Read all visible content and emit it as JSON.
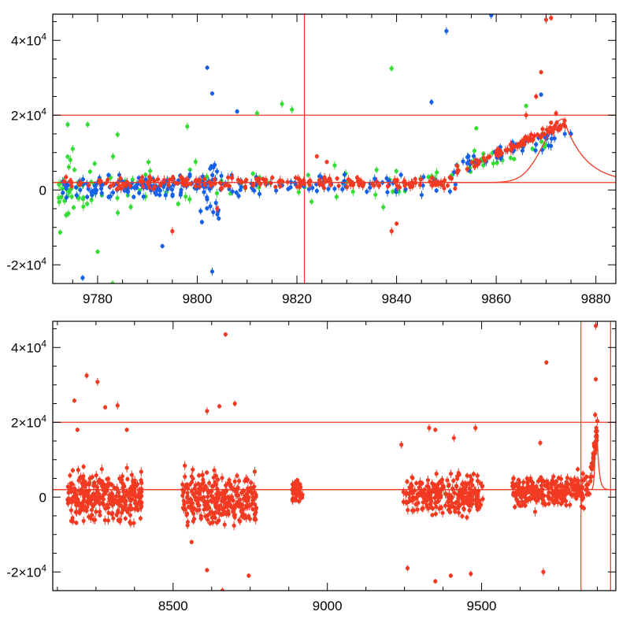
{
  "colors": {
    "red": "#f23a22",
    "blue": "#1560e8",
    "green": "#33dd33",
    "axis": "#000000"
  },
  "chart_data": [
    {
      "type": "scatter",
      "title": "",
      "xlabel": "",
      "ylabel": "",
      "xlim": [
        9771,
        9884
      ],
      "ylim": [
        -25000,
        47000
      ],
      "x_ticks": [
        9780,
        9800,
        9820,
        9840,
        9860,
        9880
      ],
      "x_tick_labels": [
        "9780",
        "9800",
        "9820",
        "9840",
        "9860",
        "9880"
      ],
      "y_ticks": [
        -20000,
        0,
        20000,
        40000
      ],
      "y_tick_labels": [
        {
          "mantissa": "-2",
          "exp": "4"
        },
        {
          "mantissa": "0",
          "exp": ""
        },
        {
          "mantissa": "2",
          "exp": "4"
        },
        {
          "mantissa": "4",
          "exp": "4"
        }
      ],
      "hlines": [
        20000,
        2000
      ],
      "vlines": [
        9821.5
      ],
      "model_curve": {
        "peak_x": 9873.5,
        "peak_y": 19000,
        "baseline": 2000,
        "rise_width": 4,
        "decay_width": 7
      },
      "series": [
        {
          "name": "green",
          "color": "green",
          "clusters": [
            {
              "x0": 9772,
              "x1": 9779,
              "n": 34,
              "y": 0,
              "spread": 7000,
              "seed": 11
            },
            {
              "x0": 9779,
              "x1": 9800,
              "n": 30,
              "y": 1000,
              "spread": 6000,
              "seed": 12
            },
            {
              "x0": 9800,
              "x1": 9840,
              "n": 26,
              "y": 1500,
              "spread": 5000,
              "seed": 13
            },
            {
              "x0": 9840,
              "x1": 9872,
              "n": 34,
              "y": 7000,
              "spread": 5000,
              "seed": 14
            }
          ],
          "points": [
            [
              9774,
              17500
            ],
            [
              9775,
              11000
            ],
            [
              9778,
              17500
            ],
            [
              9780,
              -16500
            ],
            [
              9783,
              -25000
            ],
            [
              9784,
              14800
            ],
            [
              9798,
              17000
            ],
            [
              9812,
              20500
            ],
            [
              9817,
              23000
            ],
            [
              9819,
              21500
            ],
            [
              9839,
              32500
            ],
            [
              9856,
              16500
            ],
            [
              9866,
              22500
            ]
          ]
        },
        {
          "name": "blue",
          "color": "blue",
          "clusters": [
            {
              "x0": 9773,
              "x1": 9800,
              "n": 120,
              "y": 1000,
              "spread": 2200,
              "seed": 21
            },
            {
              "x0": 9800,
              "x1": 9805,
              "n": 40,
              "y": 0,
              "spread": 6000,
              "seed": 22
            },
            {
              "x0": 9805,
              "x1": 9852,
              "n": 70,
              "y": 1500,
              "spread": 2500,
              "seed": 23
            },
            {
              "x0": 9852,
              "x1": 9875,
              "n": 55,
              "y": 10000,
              "spread": 3500,
              "seed": 24
            }
          ],
          "points": [
            [
              9777,
              -23500
            ],
            [
              9793,
              -15000
            ],
            [
              9802,
              32700
            ],
            [
              9803,
              25800
            ],
            [
              9803,
              -21800
            ],
            [
              9808,
              21000
            ],
            [
              9847,
              23500
            ],
            [
              9850,
              42500
            ],
            [
              9859,
              46700
            ],
            [
              9869,
              25500
            ]
          ]
        },
        {
          "name": "red",
          "color": "red",
          "clusters": [
            {
              "x0": 9773,
              "x1": 9852,
              "n": 210,
              "y": 2000,
              "spread": 1200,
              "seed": 31
            },
            {
              "x0": 9852,
              "x1": 9874,
              "n": 80,
              "y": 11000,
              "spread": 2000,
              "seed": 32
            }
          ],
          "points": [
            [
              9795,
              -11000
            ],
            [
              9804,
              -5000
            ],
            [
              9824,
              9000
            ],
            [
              9826,
              7500
            ],
            [
              9839,
              -11000
            ],
            [
              9840,
              -9000
            ],
            [
              9866,
              20000
            ],
            [
              9868,
              25000
            ],
            [
              9869,
              31500
            ],
            [
              9870,
              45500
            ],
            [
              9871,
              46000
            ],
            [
              9872,
              20500
            ],
            [
              9871,
              18000
            ]
          ]
        }
      ]
    },
    {
      "type": "scatter",
      "title": "",
      "xlabel": "",
      "ylabel": "",
      "xlim": [
        8110,
        9935
      ],
      "ylim": [
        -25000,
        47000
      ],
      "x_ticks": [
        8500,
        9000,
        9500
      ],
      "x_tick_labels": [
        "8500",
        "9000",
        "9500"
      ],
      "y_ticks": [
        -20000,
        0,
        20000,
        40000
      ],
      "y_tick_labels": [
        {
          "mantissa": "-2",
          "exp": "4"
        },
        {
          "mantissa": "0",
          "exp": ""
        },
        {
          "mantissa": "2",
          "exp": "4"
        },
        {
          "mantissa": "4",
          "exp": "4"
        }
      ],
      "hlines": [
        20000,
        2000
      ],
      "vlines": [
        9822,
        9918
      ],
      "model_curve": {
        "peak_x": 9873.5,
        "peak_y": 19000,
        "baseline": 2000,
        "rise_width": 5,
        "decay_width": 10
      },
      "series": [
        {
          "name": "red",
          "color": "red",
          "clusters": [
            {
              "x0": 8155,
              "x1": 8400,
              "n": 300,
              "y": 0,
              "spread": 5000,
              "seed": 41
            },
            {
              "x0": 8530,
              "x1": 8770,
              "n": 300,
              "y": -1000,
              "spread": 5500,
              "seed": 42
            },
            {
              "x0": 8885,
              "x1": 8920,
              "n": 40,
              "y": 1500,
              "spread": 2000,
              "seed": 43
            },
            {
              "x0": 9245,
              "x1": 9505,
              "n": 260,
              "y": 500,
              "spread": 4000,
              "seed": 44
            },
            {
              "x0": 9600,
              "x1": 9850,
              "n": 260,
              "y": 1500,
              "spread": 3500,
              "seed": 45
            },
            {
              "x0": 9852,
              "x1": 9875,
              "n": 40,
              "y": 11000,
              "spread": 4000,
              "seed": 46
            }
          ],
          "points": [
            [
              8180,
              25800
            ],
            [
              8220,
              32500
            ],
            [
              8255,
              30800
            ],
            [
              8280,
              24000
            ],
            [
              8320,
              24500
            ],
            [
              8350,
              18000
            ],
            [
              8190,
              18000
            ],
            [
              8610,
              23000
            ],
            [
              8650,
              24300
            ],
            [
              8670,
              43500
            ],
            [
              8700,
              25000
            ],
            [
              8610,
              -19500
            ],
            [
              8560,
              -12000
            ],
            [
              8660,
              -25000
            ],
            [
              8745,
              -21000
            ],
            [
              9330,
              18500
            ],
            [
              9260,
              -19000
            ],
            [
              9350,
              -22500
            ],
            [
              9400,
              -21000
            ],
            [
              9410,
              15800
            ],
            [
              9465,
              -20500
            ],
            [
              9710,
              36000
            ],
            [
              9700,
              -20000
            ],
            [
              9690,
              14500
            ],
            [
              9870,
              45800
            ],
            [
              9870,
              31500
            ],
            [
              9868,
              22000
            ],
            [
              9240,
              14000
            ],
            [
              9350,
              18000
            ],
            [
              9480,
              18500
            ]
          ]
        }
      ]
    }
  ]
}
